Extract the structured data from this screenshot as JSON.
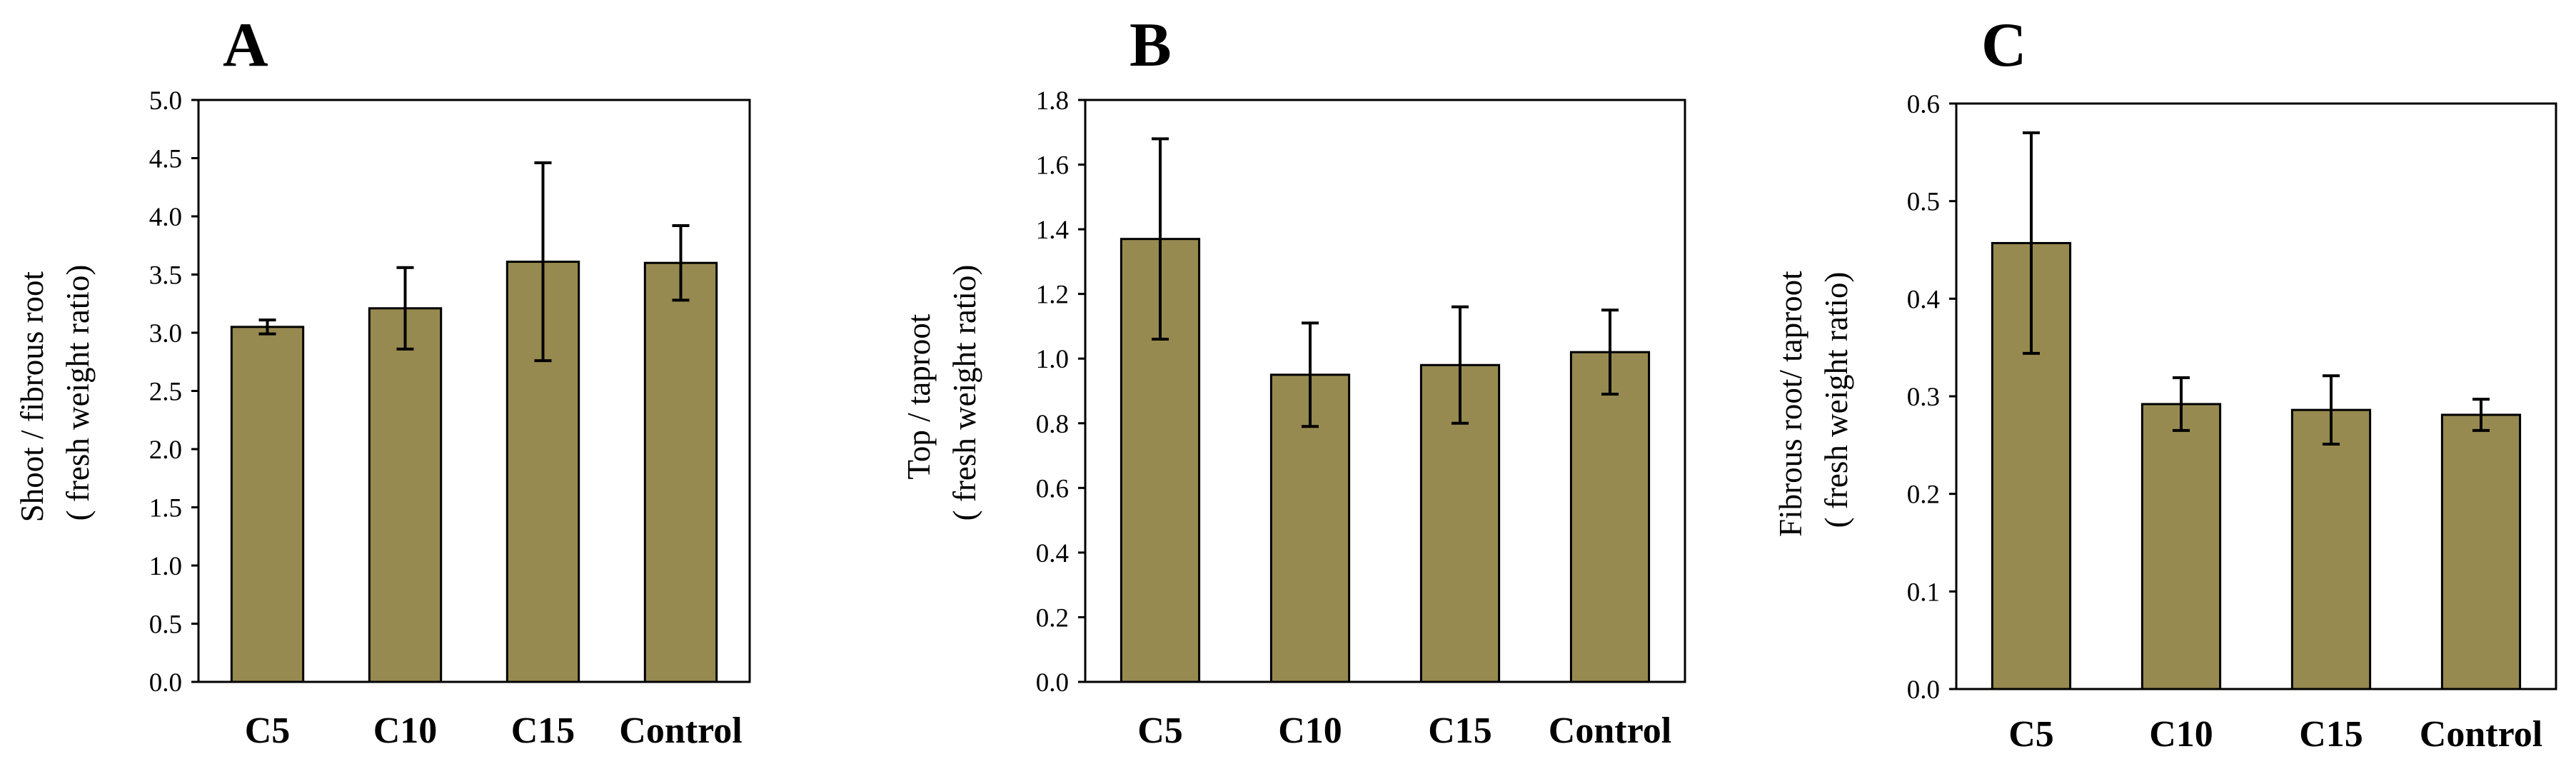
{
  "colors": {
    "bar_fill": "#978a50",
    "bar_stroke": "#000000",
    "axis": "#000000"
  },
  "chart_data": [
    {
      "panel": "A",
      "type": "bar",
      "categories": [
        "C5",
        "C10",
        "C15",
        "Control"
      ],
      "values": [
        3.05,
        3.21,
        3.61,
        3.6
      ],
      "errors": [
        0.06,
        0.35,
        0.85,
        0.32
      ],
      "ylim": [
        0,
        5.0
      ],
      "ytick_labels": [
        "0.0",
        "0.5",
        "1.0",
        "1.5",
        "2.0",
        "2.5",
        "3.0",
        "3.5",
        "4.0",
        "4.5",
        "5.0"
      ],
      "ylabel": [
        "Shoot / fibrous root",
        "( fresh weight ratio)"
      ],
      "xlabel": "",
      "title": ""
    },
    {
      "panel": "B",
      "type": "bar",
      "categories": [
        "C5",
        "C10",
        "C15",
        "Control"
      ],
      "values": [
        1.37,
        0.95,
        0.98,
        1.02
      ],
      "errors": [
        0.31,
        0.16,
        0.18,
        0.13
      ],
      "ylim": [
        0,
        1.8
      ],
      "ytick_labels": [
        "0.0",
        "0.2",
        "0.4",
        "0.6",
        "0.8",
        "1.0",
        "1.2",
        "1.4",
        "1.6",
        "1.8"
      ],
      "ylabel": [
        "Top / taproot",
        "( fresh weight ratio)"
      ],
      "xlabel": "",
      "title": ""
    },
    {
      "panel": "C",
      "type": "bar",
      "categories": [
        "C5",
        "C10",
        "C15",
        "Control"
      ],
      "values": [
        0.457,
        0.292,
        0.286,
        0.281
      ],
      "errors": [
        0.113,
        0.027,
        0.035,
        0.016
      ],
      "ylim": [
        0,
        0.6
      ],
      "ytick_labels": [
        "0.0",
        "0.1",
        "0.2",
        "0.3",
        "0.4",
        "0.5",
        "0.6"
      ],
      "ylabel": [
        "Fibrous root/ taproot",
        "( fresh weight ratio)"
      ],
      "xlabel": "",
      "title": ""
    }
  ]
}
